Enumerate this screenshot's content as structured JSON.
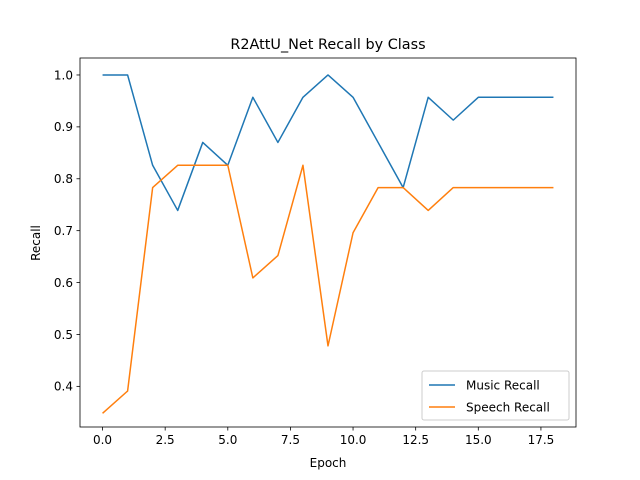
{
  "chart_data": {
    "type": "line",
    "title": "R2AttU_Net Recall by Class",
    "xlabel": "Epoch",
    "ylabel": "Recall",
    "xlim": [
      -0.9,
      18.9
    ],
    "ylim": [
      0.3217,
      1.0327
    ],
    "x_ticks": [
      0.0,
      2.5,
      5.0,
      7.5,
      10.0,
      12.5,
      15.0,
      17.5
    ],
    "x_tick_labels": [
      "0.0",
      "2.5",
      "5.0",
      "7.5",
      "10.0",
      "12.5",
      "15.0",
      "17.5"
    ],
    "y_ticks": [
      0.4,
      0.5,
      0.6,
      0.7,
      0.8,
      0.9,
      1.0
    ],
    "y_tick_labels": [
      "0.4",
      "0.5",
      "0.6",
      "0.7",
      "0.8",
      "0.9",
      "1.0"
    ],
    "grid": false,
    "legend_position": "lower-right",
    "x": [
      0,
      1,
      2,
      3,
      4,
      5,
      6,
      7,
      8,
      9,
      10,
      11,
      12,
      13,
      14,
      15,
      16,
      17,
      18
    ],
    "series": [
      {
        "name": "Music Recall",
        "color": "#1f77b4",
        "values": [
          1.0,
          1.0,
          0.826,
          0.739,
          0.87,
          0.826,
          0.957,
          0.87,
          0.957,
          1.0,
          0.957,
          0.87,
          0.783,
          0.957,
          0.913,
          0.957,
          0.957,
          0.957,
          0.957
        ]
      },
      {
        "name": "Speech Recall",
        "color": "#ff7f0e",
        "values": [
          0.348,
          0.391,
          0.783,
          0.826,
          0.826,
          0.826,
          0.609,
          0.652,
          0.826,
          0.478,
          0.696,
          0.783,
          0.783,
          0.739,
          0.783,
          0.783,
          0.783,
          0.783,
          0.783
        ]
      }
    ]
  }
}
